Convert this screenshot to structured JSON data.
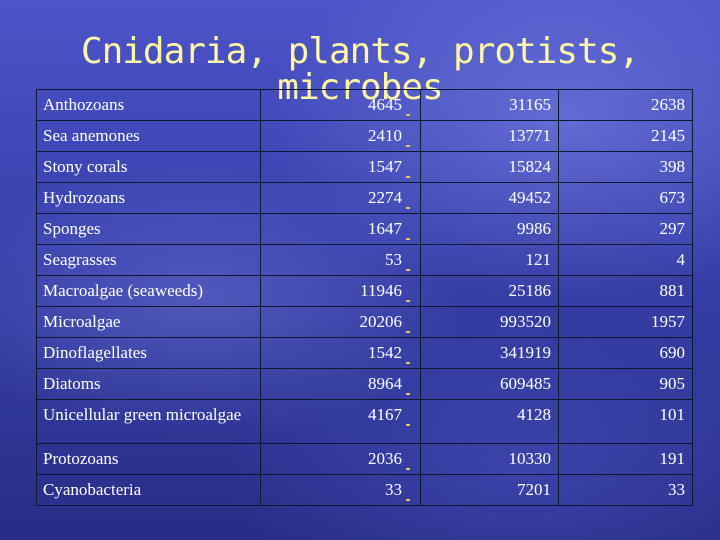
{
  "title": "Cnidaria, plants, protists, microbes",
  "table": {
    "rows": [
      {
        "name": "Anthozoans",
        "a": "4645",
        "b": "31165",
        "c": "2638"
      },
      {
        "name": "Sea anemones",
        "a": "2410",
        "b": "13771",
        "c": "2145"
      },
      {
        "name": "Stony corals",
        "a": "1547",
        "b": "15824",
        "c": "398"
      },
      {
        "name": "Hydrozoans",
        "a": "2274",
        "b": "49452",
        "c": "673"
      },
      {
        "name": "Sponges",
        "a": "1647",
        "b": "9986",
        "c": "297"
      },
      {
        "name": "Seagrasses",
        "a": "53",
        "b": "121",
        "c": "4"
      },
      {
        "name": "Macroalgae (seaweeds)",
        "a": "11946",
        "b": "25186",
        "c": "881"
      },
      {
        "name": "Microalgae",
        "a": "20206",
        "b": "993520",
        "c": "1957"
      },
      {
        "name": "Dinoflagellates",
        "a": "1542",
        "b": "341919",
        "c": "690"
      },
      {
        "name": "Diatoms",
        "a": "8964",
        "b": "609485",
        "c": "905"
      },
      {
        "name": "Unicellular green microalgae",
        "a": "4167",
        "b": "4128",
        "c": "101"
      },
      {
        "name": "Protozoans",
        "a": "2036",
        "b": "10330",
        "c": "191"
      },
      {
        "name": "Cyanobacteria",
        "a": "33",
        "b": "7201",
        "c": "33"
      }
    ]
  }
}
